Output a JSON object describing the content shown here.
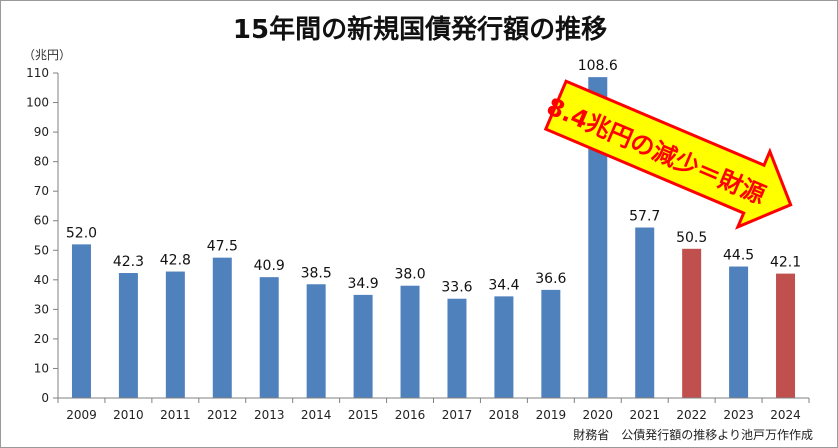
{
  "chart_data": {
    "type": "bar",
    "title": "15年間の新規国債発行額の推移",
    "ylabel": "（兆円）",
    "ylim": [
      0,
      110
    ],
    "yticks": [
      0,
      10,
      20,
      30,
      40,
      50,
      60,
      70,
      80,
      90,
      100,
      110
    ],
    "categories": [
      "2009",
      "2010",
      "2011",
      "2012",
      "2013",
      "2014",
      "2015",
      "2016",
      "2017",
      "2018",
      "2019",
      "2020",
      "2021",
      "2022",
      "2023",
      "2024"
    ],
    "values": [
      52.0,
      42.3,
      42.8,
      47.5,
      40.9,
      38.5,
      34.9,
      38.0,
      33.6,
      34.4,
      36.6,
      108.6,
      57.7,
      50.5,
      44.5,
      42.1
    ],
    "value_labels": [
      "52.0",
      "42.3",
      "42.8",
      "47.5",
      "40.9",
      "38.5",
      "34.9",
      "38.0",
      "33.6",
      "34.4",
      "36.6",
      "108.6",
      "57.7",
      "50.5",
      "44.5",
      "42.1"
    ],
    "bar_colors": [
      "#4f81bd",
      "#4f81bd",
      "#4f81bd",
      "#4f81bd",
      "#4f81bd",
      "#4f81bd",
      "#4f81bd",
      "#4f81bd",
      "#4f81bd",
      "#4f81bd",
      "#4f81bd",
      "#4f81bd",
      "#4f81bd",
      "#c0504d",
      "#4f81bd",
      "#c0504d"
    ],
    "grid": false,
    "annotation": {
      "text": "8.4兆円の減少＝財源",
      "fill_color": "#ffff00",
      "border_color": "#ff0000",
      "text_color": "#ff0000"
    },
    "source": "財務省　公債発行額の推移より池戸万作作成"
  }
}
